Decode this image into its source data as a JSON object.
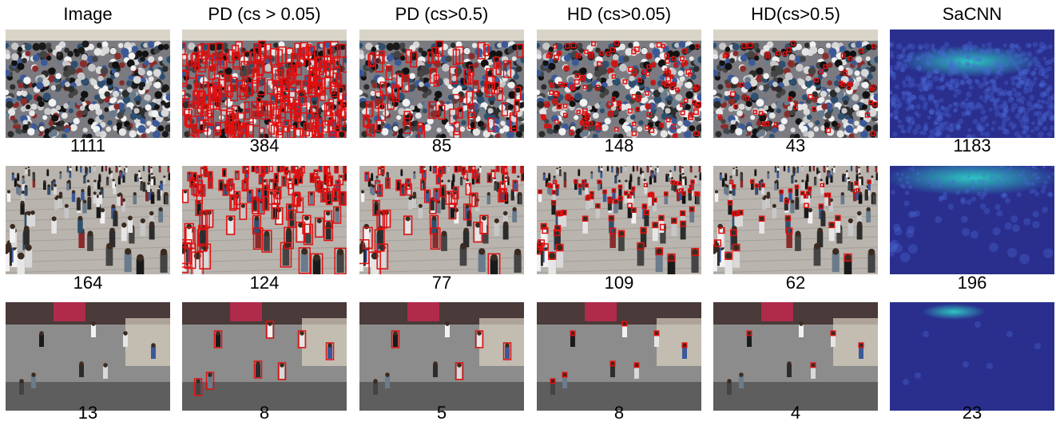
{
  "columns": [
    "Image",
    "PD (cs > 0.05)",
    "PD (cs>0.5)",
    "HD (cs>0.05)",
    "HD(cs>0.5)",
    "SaCNN"
  ],
  "rows": [
    {
      "counts": [
        "1111",
        "384",
        "85",
        "148",
        "43",
        "1183"
      ],
      "scene": "dense-crowd"
    },
    {
      "counts": [
        "164",
        "124",
        "77",
        "109",
        "62",
        "196"
      ],
      "scene": "walking-crowd"
    },
    {
      "counts": [
        "13",
        "8",
        "5",
        "8",
        "4",
        "23"
      ],
      "scene": "sparse-indoor"
    }
  ],
  "colors": {
    "detection_box": "#e01010",
    "heatmap_low": "#2a2f8e",
    "heatmap_high": "#2fd6c8"
  }
}
